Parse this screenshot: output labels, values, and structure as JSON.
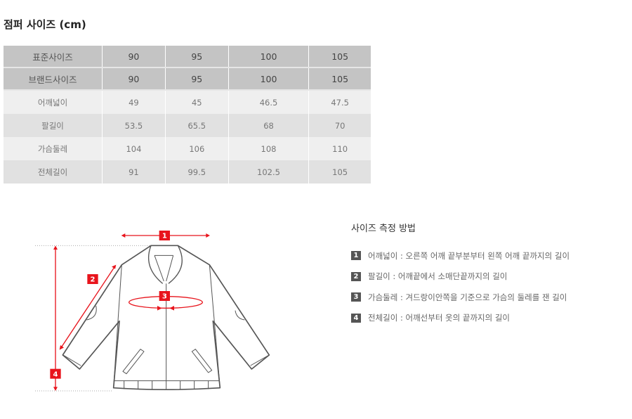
{
  "title": "점퍼 사이즈 (cm)",
  "table": {
    "header_rows": [
      {
        "label": "표준사이즈",
        "values": [
          "90",
          "95",
          "100",
          "105"
        ]
      },
      {
        "label": "브랜드사이즈",
        "values": [
          "90",
          "95",
          "100",
          "105"
        ]
      }
    ],
    "rows": [
      {
        "label": "어깨넓이",
        "values": [
          "49",
          "45",
          "46.5",
          "47.5"
        ]
      },
      {
        "label": "팔길이",
        "values": [
          "53.5",
          "65.5",
          "68",
          "70"
        ]
      },
      {
        "label": "가슴둘레",
        "values": [
          "104",
          "106",
          "108",
          "110"
        ]
      },
      {
        "label": "전체길이",
        "values": [
          "91",
          "99.5",
          "102.5",
          "105"
        ]
      }
    ]
  },
  "measure": {
    "title": "사이즈 측정 방법",
    "steps": [
      {
        "num": "1",
        "text": "어깨넓이 : 오른쪽 어깨 끝부분부터 왼쪽 어깨 끝까지의 길이"
      },
      {
        "num": "2",
        "text": "팔길이 : 어깨끝에서 소매단끝까지의 길이"
      },
      {
        "num": "3",
        "text": "가슴둘레 : 겨드랑이안쪽을 기준으로 가슴의 둘레를 잰 길이"
      },
      {
        "num": "4",
        "text": "전체길이 : 어깨선부터 옷의 끝까지의 길이"
      }
    ]
  },
  "diagram": {
    "markers": [
      "1",
      "2",
      "3",
      "4"
    ],
    "accent": "#e8141c"
  }
}
